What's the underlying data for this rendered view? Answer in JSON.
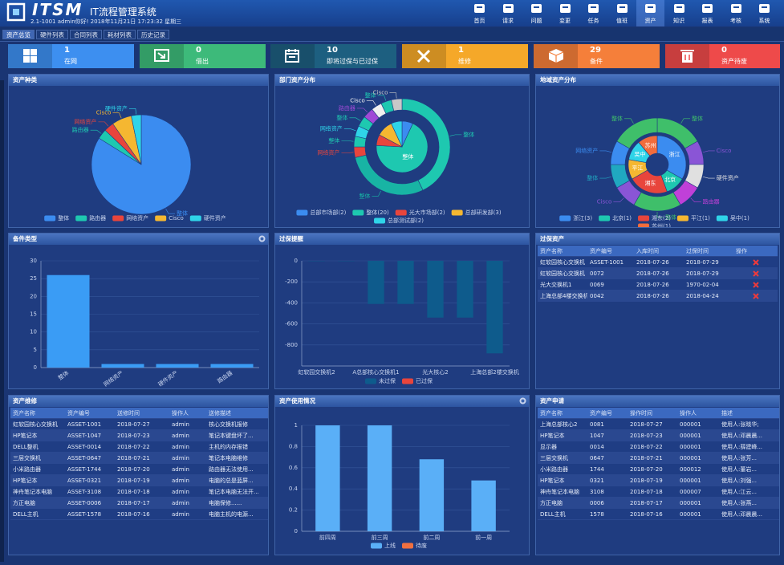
{
  "header": {
    "logo": "ITSM",
    "title": "IT流程管理系统",
    "subtitle": "2.1-1001 admin你好! 2018年11月21日 17:23:32 星期三",
    "nav": [
      "首页",
      "请求",
      "问题",
      "变更",
      "任务",
      "值班",
      "资产",
      "知识",
      "报表",
      "考核",
      "系统"
    ],
    "active_nav": 6
  },
  "tabs": [
    "资产总览",
    "硬件列表",
    "合同列表",
    "耗材列表",
    "历史记录"
  ],
  "active_tab": 0,
  "cards": [
    {
      "value": 1,
      "label": "在网",
      "color": "#3d8ff0"
    },
    {
      "value": 0,
      "label": "借出",
      "color": "#3dba7a"
    },
    {
      "value": 10,
      "label": "即将过保与已过保",
      "color": "#1d5f80"
    },
    {
      "value": 1,
      "label": "维修",
      "color": "#f5a829"
    },
    {
      "value": 29,
      "label": "备件",
      "color": "#f57f3a"
    },
    {
      "value": 0,
      "label": "资产待废",
      "color": "#ee4a4a"
    }
  ],
  "chart_data": [
    {
      "type": "pie",
      "title": "资产种类",
      "legend": "bottom",
      "rings": [
        {
          "categories": [
            "整体",
            "路由器",
            "网络资产",
            "Cisco",
            "硬件资产"
          ],
          "values": [
            26,
            1,
            1,
            2,
            1
          ],
          "colors": [
            "#3b8cf0",
            "#1ec8b0",
            "#e8453c",
            "#f5b731",
            "#2fd4e8"
          ]
        }
      ]
    },
    {
      "type": "pie",
      "title": "部门资产分布",
      "legend": "bottom",
      "rings": [
        {
          "categories": [
            "总部市场部(2)",
            "整体(20)",
            "光大市场部(2)",
            "总部研发部(3)",
            "总部测试部(2)"
          ],
          "labels": [
            null,
            "整体",
            null,
            null,
            null
          ],
          "values": [
            2,
            20,
            2,
            3,
            2
          ],
          "colors": [
            "#3b8cf0",
            "#1ec8b0",
            "#e8453c",
            "#f5b731",
            "#2fd4e8"
          ]
        },
        {
          "categories": [
            "整体",
            "整体",
            "网络资产",
            "整体",
            "网络资产",
            "整体",
            "路由器",
            "Cisco",
            "整体",
            "Cisco"
          ],
          "values": [
            12,
            8,
            1,
            1,
            1,
            1,
            1,
            1,
            1,
            1
          ],
          "colors": [
            "#1ec8b0",
            "#18b4a4",
            "#e8453c",
            "#1ec8b0",
            "#2fd4e8",
            "#1ec8b0",
            "#a04ad6",
            "#f0f0f0",
            "#1ec8b0",
            "#c8c8c8"
          ]
        }
      ]
    },
    {
      "type": "pie",
      "title": "地域资产分布",
      "legend": "bottom",
      "rings": [
        {
          "categories": [
            "浙江(3)",
            "北京(1)",
            "湘东(2)",
            "平江(1)",
            "吴中(1)",
            "苏州(1)"
          ],
          "labels": [
            "浙江",
            "北京",
            "湘东",
            "平江",
            "吴中",
            "苏州"
          ],
          "values": [
            3,
            1,
            2,
            1,
            1,
            1
          ],
          "colors": [
            "#3b8cf0",
            "#1ec8b0",
            "#e8453c",
            "#f5b731",
            "#2fd4e8",
            "#f26c3c"
          ]
        },
        {
          "categories": [
            "整体",
            "Cisco",
            "硬件资产",
            "路由器",
            "整体",
            "Cisco",
            "整体",
            "网络资产",
            "整体"
          ],
          "values": [
            2,
            1,
            1,
            1,
            2,
            1,
            1,
            1,
            2
          ],
          "colors": [
            "#3fbf6a",
            "#8a55d6",
            "#e0e0e0",
            "#c040d8",
            "#3fbf6a",
            "#8a55d6",
            "#20a8c0",
            "#3b8cf0",
            "#3fbf6a"
          ]
        }
      ]
    },
    {
      "type": "bar",
      "title": "备件类型",
      "categories": [
        "整体",
        "网络资产",
        "硬件资产",
        "路由器"
      ],
      "values": [
        26,
        1,
        1,
        1
      ],
      "color": "#3a9cf5",
      "ylim": [
        0,
        30
      ],
      "yticks": [
        0,
        5,
        10,
        15,
        20,
        25,
        30
      ],
      "grid": true
    },
    {
      "type": "bar",
      "title": "过保提醒",
      "categories": [
        "虹软园交换机2",
        null,
        "A总部核心交换机1",
        null,
        "光大核心2",
        null,
        "上海总部2楼交换机"
      ],
      "series": [
        {
          "name": "未过保",
          "color": "#0e5b8c",
          "values": [
            -3,
            -3,
            -410,
            -410,
            -540,
            -540,
            -880
          ]
        },
        {
          "name": "已过保",
          "color": "#e8453c",
          "values": [
            0,
            0,
            0,
            0,
            0,
            0,
            0
          ]
        }
      ],
      "stacked": true,
      "ylim": [
        -1000,
        0
      ],
      "yticks": [
        0,
        -200,
        -400,
        -600,
        -800
      ],
      "grid": true,
      "legend": "bottom"
    },
    {
      "type": "bar",
      "title": "资产使用情况",
      "categories": [
        "前四周",
        "前三周",
        "前二周",
        "前一周"
      ],
      "series": [
        {
          "name": "上线",
          "color": "#5aaff7",
          "values": [
            1,
            1,
            0.68,
            0.48
          ]
        },
        {
          "name": "待废",
          "color": "#f07040",
          "values": [
            0,
            0,
            0,
            0
          ]
        }
      ],
      "stacked": true,
      "ylim": [
        0,
        1
      ],
      "yticks": [
        0,
        0.2,
        0.4,
        0.6,
        0.8,
        1
      ],
      "grid": true,
      "legend": "bottom"
    }
  ],
  "tables": [
    {
      "title": "过保资产",
      "columns": [
        "资产名称",
        "资产编号",
        "入库时间",
        "过保时间",
        "操作"
      ],
      "rows": [
        [
          "虹软园核心交换机",
          "ASSET-1001",
          "2018-07-26",
          "2018-07-29"
        ],
        [
          "虹软园核心交换机",
          "0072",
          "2018-07-26",
          "2018-07-29"
        ],
        [
          "光大交换机1",
          "0069",
          "2018-07-26",
          "1970-02-04"
        ],
        [
          "上海总部4楼交换机",
          "0042",
          "2018-07-26",
          "2018-04-24"
        ]
      ]
    },
    {
      "title": "资产维修",
      "columns": [
        "资产名称",
        "资产编号",
        "送修时间",
        "操作人",
        "送修描述"
      ],
      "rows": [
        [
          "虹软园核心交换机",
          "ASSET-1001",
          "2018-07-27",
          "admin",
          "核心交换机报修"
        ],
        [
          "HP笔记本",
          "ASSET-1047",
          "2018-07-23",
          "admin",
          "笔记本键盘坏了..."
        ],
        [
          "DELL整机",
          "ASSET-0014",
          "2018-07-22",
          "admin",
          "主机的内存报错"
        ],
        [
          "三层交换机",
          "ASSET-0647",
          "2018-07-21",
          "admin",
          "笔记本电脑维修"
        ],
        [
          "小米路由器",
          "ASSET-1744",
          "2018-07-20",
          "admin",
          "路由器无法使用..."
        ],
        [
          "HP笔记本",
          "ASSET-0321",
          "2018-07-19",
          "admin",
          "电脑的总是蓝屏..."
        ],
        [
          "神舟笔记本电脑",
          "ASSET-3108",
          "2018-07-18",
          "admin",
          "笔记本电脑无法开..."
        ],
        [
          "方正电脑",
          "ASSET-0006",
          "2018-07-17",
          "admin",
          "电脑保修......"
        ],
        [
          "DELL主机",
          "ASSET-1578",
          "2018-07-16",
          "admin",
          "电脑主机的电源..."
        ]
      ]
    },
    {
      "title": "资产申请",
      "columns": [
        "资产名称",
        "资产编号",
        "操作时间",
        "操作人",
        "描述"
      ],
      "rows": [
        [
          "上海总部核心2",
          "0081",
          "2018-07-27",
          "000001",
          "使用人:张晓华;"
        ],
        [
          "HP笔记本",
          "1047",
          "2018-07-23",
          "000001",
          "使用人:邓晨晨..."
        ],
        [
          "显示器",
          "0014",
          "2018-07-22",
          "000001",
          "使用人:薛建峰..."
        ],
        [
          "三层交换机",
          "0647",
          "2018-07-21",
          "000001",
          "使用人:张芳..."
        ],
        [
          "小米路由器",
          "1744",
          "2018-07-20",
          "000012",
          "使用人:董岩..."
        ],
        [
          "HP笔记本",
          "0321",
          "2018-07-19",
          "000001",
          "使用人:刘强..."
        ],
        [
          "神舟笔记本电脑",
          "3108",
          "2018-07-18",
          "000007",
          "使用人:江云..."
        ],
        [
          "方正电脑",
          "0006",
          "2018-07-17",
          "000001",
          "使用人:张燕..."
        ],
        [
          "DELL主机",
          "1578",
          "2018-07-16",
          "000001",
          "使用人:邓晨晨..."
        ]
      ]
    }
  ]
}
